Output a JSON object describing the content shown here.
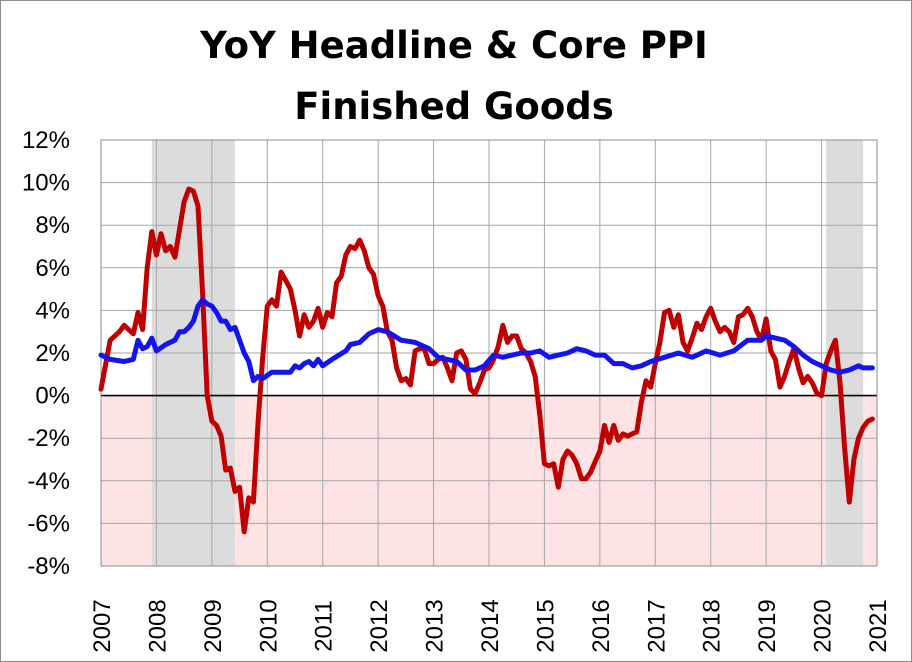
{
  "chart_data": {
    "type": "line",
    "title": [
      "YoY Headline & Core PPI",
      "Finished Goods"
    ],
    "xlabel": "",
    "ylabel": "",
    "xlim": [
      2007,
      2021
    ],
    "ylim": [
      -8,
      12
    ],
    "x_ticks": [
      "2007",
      "2008",
      "2009",
      "2010",
      "2011",
      "2012",
      "2013",
      "2014",
      "2015",
      "2016",
      "2017",
      "2018",
      "2019",
      "2020",
      "2021"
    ],
    "y_ticks": [
      "12%",
      "10%",
      "8%",
      "6%",
      "4%",
      "2%",
      "0%",
      "-2%",
      "-4%",
      "-6%",
      "-8%"
    ],
    "grid": true,
    "negative_region_color": "#fde3e3",
    "recession_shading": {
      "color": "#dcdcdc",
      "periods": [
        [
          "2007-12",
          "2009-06"
        ],
        [
          "2020-02",
          "2020-10"
        ]
      ]
    },
    "series": [
      {
        "name": "",
        "color": "#c00000",
        "points": [
          [
            "2007-01",
            0.3
          ],
          [
            "2007-03",
            2.6
          ],
          [
            "2007-05",
            3.0
          ],
          [
            "2007-06",
            3.3
          ],
          [
            "2007-08",
            2.9
          ],
          [
            "2007-09",
            3.9
          ],
          [
            "2007-10",
            3.1
          ],
          [
            "2007-11",
            6.0
          ],
          [
            "2007-12",
            7.7
          ],
          [
            "2008-01",
            6.6
          ],
          [
            "2008-02",
            7.6
          ],
          [
            "2008-03",
            6.8
          ],
          [
            "2008-04",
            7.0
          ],
          [
            "2008-05",
            6.5
          ],
          [
            "2008-06",
            7.8
          ],
          [
            "2008-07",
            9.1
          ],
          [
            "2008-08",
            9.7
          ],
          [
            "2008-09",
            9.6
          ],
          [
            "2008-10",
            8.9
          ],
          [
            "2008-11",
            4.8
          ],
          [
            "2008-12",
            0.0
          ],
          [
            "2009-01",
            -1.2
          ],
          [
            "2009-02",
            -1.4
          ],
          [
            "2009-03",
            -1.9
          ],
          [
            "2009-04",
            -3.5
          ],
          [
            "2009-05",
            -3.4
          ],
          [
            "2009-06",
            -4.5
          ],
          [
            "2009-07",
            -4.3
          ],
          [
            "2009-08",
            -6.4
          ],
          [
            "2009-09",
            -4.8
          ],
          [
            "2009-10",
            -5.0
          ],
          [
            "2009-11",
            -1.3
          ],
          [
            "2009-12",
            1.8
          ],
          [
            "2010-01",
            4.2
          ],
          [
            "2010-02",
            4.5
          ],
          [
            "2010-03",
            4.2
          ],
          [
            "2010-04",
            5.8
          ],
          [
            "2010-05",
            5.4
          ],
          [
            "2010-06",
            5.0
          ],
          [
            "2010-07",
            4.0
          ],
          [
            "2010-08",
            2.8
          ],
          [
            "2010-09",
            3.8
          ],
          [
            "2010-10",
            3.2
          ],
          [
            "2010-11",
            3.5
          ],
          [
            "2010-12",
            4.1
          ],
          [
            "2011-01",
            3.2
          ],
          [
            "2011-02",
            3.9
          ],
          [
            "2011-03",
            3.7
          ],
          [
            "2011-04",
            5.3
          ],
          [
            "2011-05",
            5.6
          ],
          [
            "2011-06",
            6.6
          ],
          [
            "2011-07",
            7.0
          ],
          [
            "2011-08",
            6.9
          ],
          [
            "2011-09",
            7.3
          ],
          [
            "2011-10",
            6.8
          ],
          [
            "2011-11",
            6.0
          ],
          [
            "2011-12",
            5.7
          ],
          [
            "2012-01",
            4.7
          ],
          [
            "2012-02",
            4.2
          ],
          [
            "2012-03",
            3.0
          ],
          [
            "2012-04",
            2.6
          ],
          [
            "2012-05",
            1.3
          ],
          [
            "2012-06",
            0.7
          ],
          [
            "2012-07",
            0.8
          ],
          [
            "2012-08",
            0.5
          ],
          [
            "2012-09",
            2.1
          ],
          [
            "2012-10",
            2.2
          ],
          [
            "2012-11",
            2.2
          ],
          [
            "2012-12",
            1.5
          ],
          [
            "2013-01",
            1.5
          ],
          [
            "2013-02",
            1.7
          ],
          [
            "2013-03",
            1.8
          ],
          [
            "2013-04",
            1.3
          ],
          [
            "2013-05",
            0.7
          ],
          [
            "2013-06",
            2.0
          ],
          [
            "2013-07",
            2.1
          ],
          [
            "2013-08",
            1.7
          ],
          [
            "2013-09",
            0.3
          ],
          [
            "2013-10",
            0.1
          ],
          [
            "2013-11",
            0.6
          ],
          [
            "2013-12",
            1.2
          ],
          [
            "2014-01",
            1.3
          ],
          [
            "2014-02",
            1.7
          ],
          [
            "2014-03",
            2.3
          ],
          [
            "2014-04",
            3.3
          ],
          [
            "2014-05",
            2.5
          ],
          [
            "2014-06",
            2.8
          ],
          [
            "2014-07",
            2.8
          ],
          [
            "2014-08",
            2.2
          ],
          [
            "2014-09",
            2.0
          ],
          [
            "2014-10",
            1.6
          ],
          [
            "2014-11",
            0.9
          ],
          [
            "2014-12",
            -0.9
          ],
          [
            "2015-01",
            -3.2
          ],
          [
            "2015-02",
            -3.3
          ],
          [
            "2015-03",
            -3.2
          ],
          [
            "2015-04",
            -4.3
          ],
          [
            "2015-05",
            -3.0
          ],
          [
            "2015-06",
            -2.6
          ],
          [
            "2015-07",
            -2.8
          ],
          [
            "2015-08",
            -3.2
          ],
          [
            "2015-09",
            -3.9
          ],
          [
            "2015-10",
            -3.9
          ],
          [
            "2015-11",
            -3.6
          ],
          [
            "2015-12",
            -3.1
          ],
          [
            "2016-01",
            -2.6
          ],
          [
            "2016-02",
            -1.4
          ],
          [
            "2016-03",
            -2.2
          ],
          [
            "2016-04",
            -1.4
          ],
          [
            "2016-05",
            -2.1
          ],
          [
            "2016-06",
            -1.8
          ],
          [
            "2016-07",
            -1.9
          ],
          [
            "2016-08",
            -1.8
          ],
          [
            "2016-09",
            -1.7
          ],
          [
            "2016-10",
            -0.3
          ],
          [
            "2016-11",
            0.7
          ],
          [
            "2016-12",
            0.4
          ],
          [
            "2017-01",
            1.5
          ],
          [
            "2017-02",
            2.5
          ],
          [
            "2017-03",
            3.9
          ],
          [
            "2017-04",
            4.0
          ],
          [
            "2017-05",
            3.2
          ],
          [
            "2017-06",
            3.8
          ],
          [
            "2017-07",
            2.5
          ],
          [
            "2017-08",
            2.1
          ],
          [
            "2017-09",
            2.7
          ],
          [
            "2017-10",
            3.4
          ],
          [
            "2017-11",
            3.1
          ],
          [
            "2017-12",
            3.7
          ],
          [
            "2018-01",
            4.1
          ],
          [
            "2018-02",
            3.5
          ],
          [
            "2018-03",
            3.0
          ],
          [
            "2018-04",
            3.2
          ],
          [
            "2018-05",
            3.0
          ],
          [
            "2018-06",
            2.5
          ],
          [
            "2018-07",
            3.7
          ],
          [
            "2018-08",
            3.8
          ],
          [
            "2018-09",
            4.1
          ],
          [
            "2018-10",
            3.7
          ],
          [
            "2018-11",
            3.0
          ],
          [
            "2018-12",
            2.6
          ],
          [
            "2019-01",
            3.6
          ],
          [
            "2019-02",
            2.1
          ],
          [
            "2019-03",
            1.7
          ],
          [
            "2019-04",
            0.4
          ],
          [
            "2019-05",
            0.9
          ],
          [
            "2019-06",
            1.6
          ],
          [
            "2019-07",
            2.2
          ],
          [
            "2019-08",
            1.3
          ],
          [
            "2019-09",
            0.6
          ],
          [
            "2019-10",
            0.9
          ],
          [
            "2019-11",
            0.6
          ],
          [
            "2019-12",
            0.1
          ],
          [
            "2020-01",
            0.0
          ],
          [
            "2020-02",
            1.5
          ],
          [
            "2020-03",
            2.1
          ],
          [
            "2020-04",
            2.6
          ],
          [
            "2020-05",
            0.6
          ],
          [
            "2020-06",
            -2.5
          ],
          [
            "2020-07",
            -5.0
          ],
          [
            "2020-08",
            -3.0
          ],
          [
            "2020-09",
            -2.0
          ],
          [
            "2020-10",
            -1.5
          ],
          [
            "2020-11",
            -1.2
          ],
          [
            "2020-12",
            -1.1
          ]
        ]
      },
      {
        "name": "",
        "color": "#1414f0",
        "points": [
          [
            "2007-01",
            1.9
          ],
          [
            "2007-03",
            1.7
          ],
          [
            "2007-06",
            1.6
          ],
          [
            "2007-08",
            1.7
          ],
          [
            "2007-09",
            2.6
          ],
          [
            "2007-10",
            2.2
          ],
          [
            "2007-11",
            2.3
          ],
          [
            "2007-12",
            2.7
          ],
          [
            "2008-01",
            2.1
          ],
          [
            "2008-03",
            2.4
          ],
          [
            "2008-05",
            2.6
          ],
          [
            "2008-06",
            3.0
          ],
          [
            "2008-07",
            3.0
          ],
          [
            "2008-08",
            3.2
          ],
          [
            "2008-09",
            3.5
          ],
          [
            "2008-10",
            4.2
          ],
          [
            "2008-11",
            4.5
          ],
          [
            "2008-12",
            4.3
          ],
          [
            "2009-01",
            4.2
          ],
          [
            "2009-02",
            3.9
          ],
          [
            "2009-03",
            3.5
          ],
          [
            "2009-04",
            3.5
          ],
          [
            "2009-05",
            3.1
          ],
          [
            "2009-06",
            3.2
          ],
          [
            "2009-07",
            2.6
          ],
          [
            "2009-08",
            2.0
          ],
          [
            "2009-09",
            1.6
          ],
          [
            "2009-10",
            0.7
          ],
          [
            "2009-11",
            0.9
          ],
          [
            "2009-12",
            0.8
          ],
          [
            "2010-02",
            1.1
          ],
          [
            "2010-06",
            1.1
          ],
          [
            "2010-07",
            1.4
          ],
          [
            "2010-08",
            1.3
          ],
          [
            "2010-09",
            1.5
          ],
          [
            "2010-10",
            1.6
          ],
          [
            "2010-11",
            1.4
          ],
          [
            "2010-12",
            1.7
          ],
          [
            "2011-01",
            1.4
          ],
          [
            "2011-03",
            1.7
          ],
          [
            "2011-06",
            2.1
          ],
          [
            "2011-07",
            2.4
          ],
          [
            "2011-09",
            2.5
          ],
          [
            "2011-11",
            2.9
          ],
          [
            "2012-01",
            3.1
          ],
          [
            "2012-03",
            3.0
          ],
          [
            "2012-06",
            2.6
          ],
          [
            "2012-09",
            2.5
          ],
          [
            "2012-12",
            2.2
          ],
          [
            "2013-02",
            1.8
          ],
          [
            "2013-04",
            1.7
          ],
          [
            "2013-06",
            1.6
          ],
          [
            "2013-08",
            1.2
          ],
          [
            "2013-10",
            1.2
          ],
          [
            "2013-12",
            1.4
          ],
          [
            "2014-02",
            1.9
          ],
          [
            "2014-04",
            1.8
          ],
          [
            "2014-06",
            1.9
          ],
          [
            "2014-08",
            2.0
          ],
          [
            "2014-10",
            2.0
          ],
          [
            "2014-12",
            2.1
          ],
          [
            "2015-02",
            1.8
          ],
          [
            "2015-04",
            1.9
          ],
          [
            "2015-06",
            2.0
          ],
          [
            "2015-08",
            2.2
          ],
          [
            "2015-10",
            2.1
          ],
          [
            "2015-12",
            1.9
          ],
          [
            "2016-02",
            1.9
          ],
          [
            "2016-04",
            1.5
          ],
          [
            "2016-06",
            1.5
          ],
          [
            "2016-08",
            1.3
          ],
          [
            "2016-10",
            1.4
          ],
          [
            "2016-12",
            1.6
          ],
          [
            "2017-03",
            1.8
          ],
          [
            "2017-06",
            2.0
          ],
          [
            "2017-09",
            1.8
          ],
          [
            "2017-12",
            2.1
          ],
          [
            "2018-03",
            1.9
          ],
          [
            "2018-06",
            2.1
          ],
          [
            "2018-09",
            2.6
          ],
          [
            "2018-12",
            2.6
          ],
          [
            "2019-01",
            2.8
          ],
          [
            "2019-03",
            2.7
          ],
          [
            "2019-05",
            2.6
          ],
          [
            "2019-07",
            2.3
          ],
          [
            "2019-09",
            1.9
          ],
          [
            "2019-11",
            1.6
          ],
          [
            "2020-01",
            1.4
          ],
          [
            "2020-03",
            1.2
          ],
          [
            "2020-05",
            1.1
          ],
          [
            "2020-07",
            1.2
          ],
          [
            "2020-09",
            1.4
          ],
          [
            "2020-10",
            1.3
          ],
          [
            "2020-12",
            1.3
          ]
        ]
      }
    ]
  }
}
